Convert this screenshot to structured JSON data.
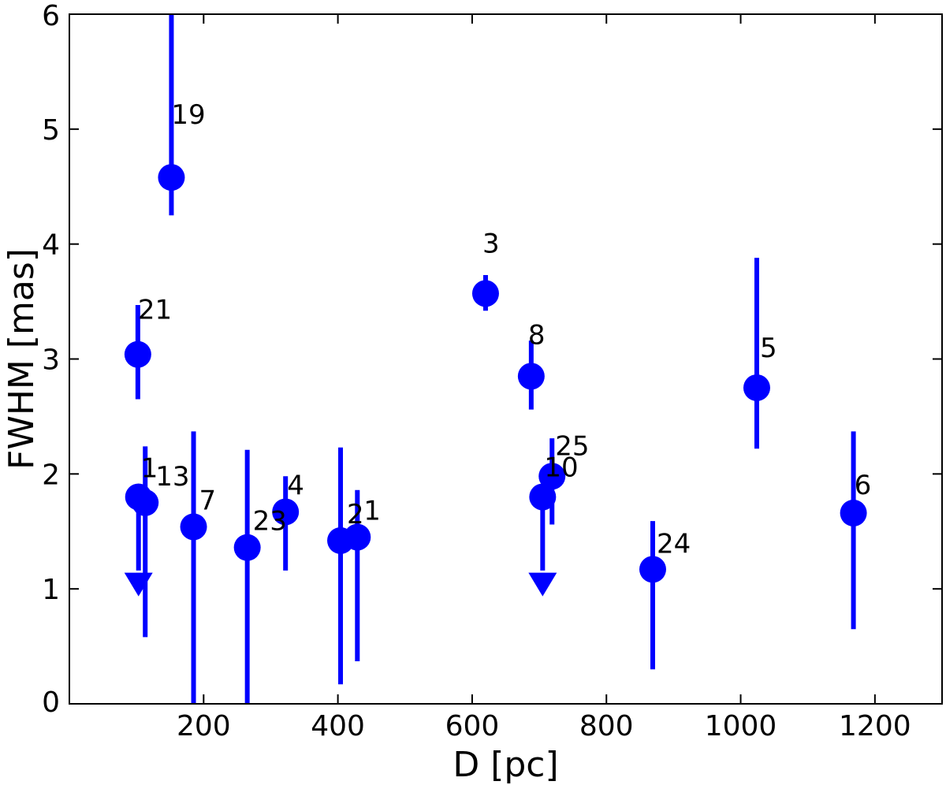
{
  "chart_data": {
    "type": "scatter",
    "title": "",
    "xlabel": "D [pc]",
    "ylabel": "FWHM [mas]",
    "xlim": [
      0,
      1300
    ],
    "ylim": [
      0,
      6
    ],
    "xticks": [
      200,
      400,
      600,
      800,
      1000,
      1200
    ],
    "yticks": [
      0,
      1,
      2,
      3,
      4,
      5,
      6
    ],
    "grid": false,
    "legend": "none",
    "colors": {
      "marker": "#0000ff",
      "axes": "#000000"
    },
    "points": [
      {
        "label": "19",
        "x": 152,
        "y": 4.58,
        "yerr_low": 4.25,
        "yerr_high": 6.0,
        "upper_limit": false
      },
      {
        "label": "21",
        "x": 102,
        "y": 3.04,
        "yerr_low": 2.65,
        "yerr_high": 3.47,
        "upper_limit": false
      },
      {
        "label": "1",
        "x": 103,
        "y": 1.8,
        "yerr_low": 1.1,
        "yerr_high": 1.8,
        "upper_limit": true
      },
      {
        "label": "13",
        "x": 113,
        "y": 1.75,
        "yerr_low": 0.58,
        "yerr_high": 2.24,
        "upper_limit": false
      },
      {
        "label": "7",
        "x": 185,
        "y": 1.54,
        "yerr_low": 0.0,
        "yerr_high": 2.37,
        "upper_limit": false
      },
      {
        "label": "23",
        "x": 265,
        "y": 1.36,
        "yerr_low": 0.0,
        "yerr_high": 2.21,
        "upper_limit": false
      },
      {
        "label": "4",
        "x": 322,
        "y": 1.67,
        "yerr_low": 1.16,
        "yerr_high": 1.98,
        "upper_limit": false
      },
      {
        "label": "2",
        "x": 404,
        "y": 1.42,
        "yerr_low": 0.17,
        "yerr_high": 2.23,
        "upper_limit": false
      },
      {
        "label": "1",
        "x": 429,
        "y": 1.45,
        "yerr_low": 0.37,
        "yerr_high": 1.86,
        "upper_limit": false
      },
      {
        "label": "3",
        "x": 620,
        "y": 3.57,
        "yerr_low": 3.42,
        "yerr_high": 3.73,
        "upper_limit": false
      },
      {
        "label": "8",
        "x": 688,
        "y": 2.85,
        "yerr_low": 2.56,
        "yerr_high": 3.16,
        "upper_limit": false
      },
      {
        "label": "10",
        "x": 705,
        "y": 1.8,
        "yerr_low": 1.1,
        "yerr_high": 1.8,
        "upper_limit": true
      },
      {
        "label": "25",
        "x": 719,
        "y": 1.98,
        "yerr_low": 1.56,
        "yerr_high": 2.31,
        "upper_limit": false
      },
      {
        "label": "24",
        "x": 869,
        "y": 1.17,
        "yerr_low": 0.3,
        "yerr_high": 1.59,
        "upper_limit": false
      },
      {
        "label": "5",
        "x": 1024,
        "y": 2.75,
        "yerr_low": 2.22,
        "yerr_high": 3.88,
        "upper_limit": false
      },
      {
        "label": "6",
        "x": 1168,
        "y": 1.66,
        "yerr_low": 0.65,
        "yerr_high": 2.37,
        "upper_limit": false
      }
    ]
  }
}
